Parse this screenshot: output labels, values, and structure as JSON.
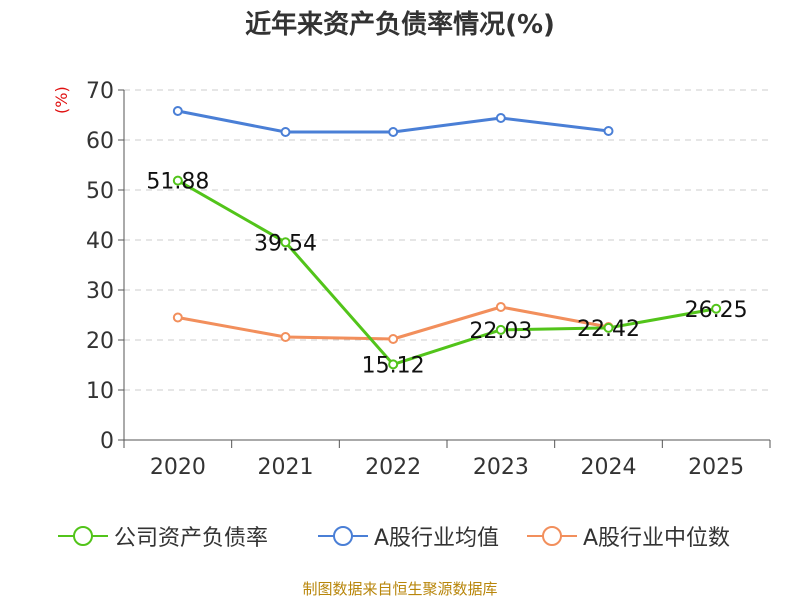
{
  "title": "近年来资产负债率情况(%)",
  "source": "制图数据来自恒生聚源数据库",
  "chart_data": {
    "type": "line",
    "title": "近年来资产负债率情况(%)",
    "ylabel": "(%)",
    "ylim": [
      0,
      70
    ],
    "yticks": [
      0,
      10,
      20,
      30,
      40,
      50,
      60,
      70
    ],
    "categories": [
      "2020",
      "2021",
      "2022",
      "2023",
      "2024",
      "2025"
    ],
    "grid": true,
    "legend_position": "bottom",
    "series": [
      {
        "name": "公司资产负债率",
        "color": "#52c41a",
        "values": [
          51.88,
          39.54,
          15.12,
          22.03,
          22.42,
          26.25
        ],
        "data_labels": [
          "51.88",
          "39.54",
          "15.12",
          "22.03",
          "22.42",
          "26.25"
        ]
      },
      {
        "name": "A股行业均值",
        "color": "#4a7fd6",
        "values": [
          65.8,
          61.6,
          61.6,
          64.4,
          61.8,
          null
        ]
      },
      {
        "name": "A股行业中位数",
        "color": "#f28f5c",
        "values": [
          24.5,
          20.6,
          20.2,
          26.6,
          22.6,
          null
        ]
      }
    ]
  }
}
